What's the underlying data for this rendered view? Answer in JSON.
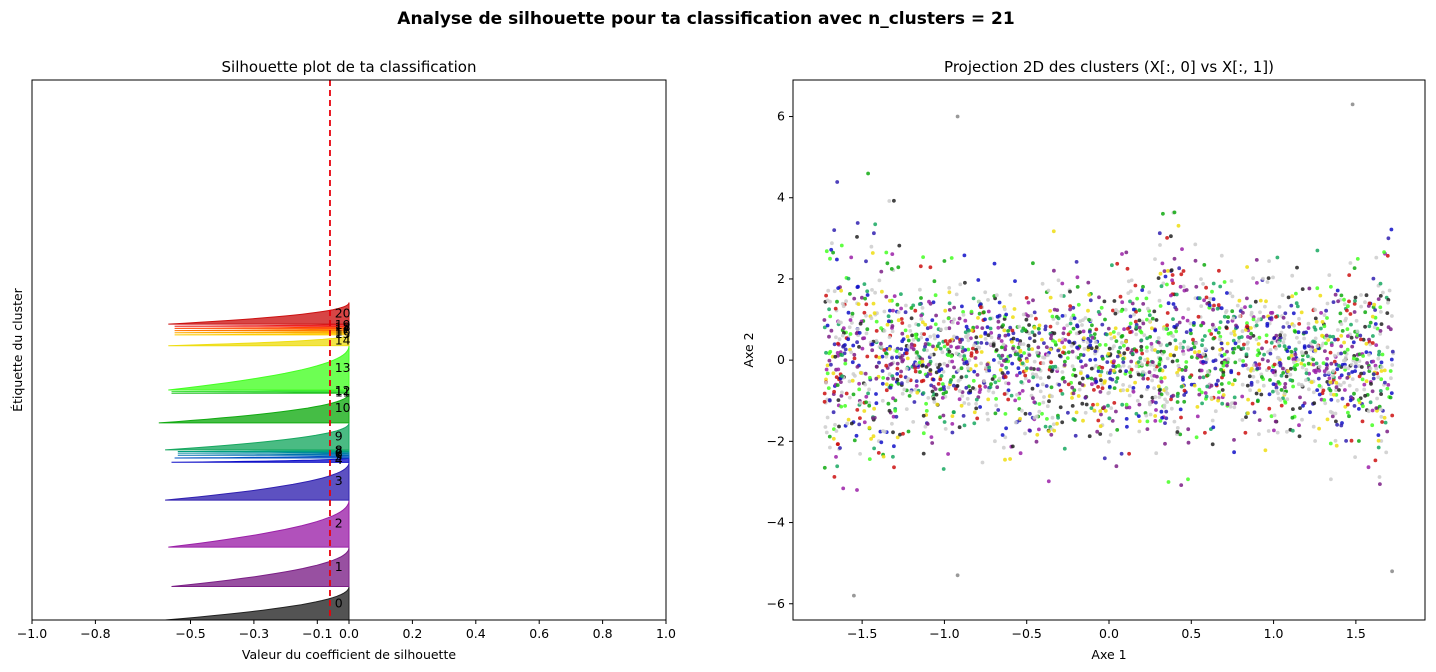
{
  "figure": {
    "suptitle": "Analyse de silhouette pour ta classification avec n_clusters = 21"
  },
  "chart_data": [
    {
      "type": "area",
      "title": "Silhouette plot de ta classification",
      "xlabel": "Valeur du coefficient de silhouette",
      "ylabel": "Étiquette du cluster",
      "xlim": [
        -1.0,
        1.0
      ],
      "xticks": [
        "−1.0",
        "−0.8",
        "−0.5",
        "−0.3",
        "−0.1",
        "0.0",
        "0.2",
        "0.4",
        "0.6",
        "0.8",
        "1.0"
      ],
      "xtick_values": [
        -1.0,
        -0.8,
        -0.5,
        -0.3,
        -0.1,
        0.0,
        0.2,
        0.4,
        0.6,
        0.8,
        1.0
      ],
      "average_silhouette": -0.06,
      "average_line_color": "#e8000b",
      "clusters": [
        {
          "label": "0",
          "color": "#222222",
          "min": -0.58,
          "y0": 0.0,
          "y1": 0.062
        },
        {
          "label": "1",
          "color": "#7b1f86",
          "min": -0.56,
          "y0": 0.062,
          "y1": 0.135
        },
        {
          "label": "2",
          "color": "#9b20a8",
          "min": -0.57,
          "y0": 0.135,
          "y1": 0.222
        },
        {
          "label": "3",
          "color": "#3020b0",
          "min": -0.58,
          "y0": 0.222,
          "y1": 0.292
        },
        {
          "label": "4",
          "color": "#1010c8",
          "min": -0.56,
          "y0": 0.292,
          "y1": 0.3
        },
        {
          "label": "5",
          "color": "#0050c0",
          "min": -0.55,
          "y0": 0.3,
          "y1": 0.305
        },
        {
          "label": "6",
          "color": "#0070b0",
          "min": -0.54,
          "y0": 0.305,
          "y1": 0.309
        },
        {
          "label": "7",
          "color": "#008a9a",
          "min": -0.54,
          "y0": 0.309,
          "y1": 0.312
        },
        {
          "label": "8",
          "color": "#00a080",
          "min": -0.54,
          "y0": 0.312,
          "y1": 0.315
        },
        {
          "label": "9",
          "color": "#17a860",
          "min": -0.58,
          "y0": 0.315,
          "y1": 0.365
        },
        {
          "label": "10",
          "color": "#11aa11",
          "min": -0.6,
          "y0": 0.365,
          "y1": 0.42
        },
        {
          "label": "11",
          "color": "#22c022",
          "min": -0.56,
          "y0": 0.42,
          "y1": 0.423
        },
        {
          "label": "12",
          "color": "#3fe03f",
          "min": -0.56,
          "y0": 0.423,
          "y1": 0.426
        },
        {
          "label": "13",
          "color": "#44ff22",
          "min": -0.57,
          "y0": 0.426,
          "y1": 0.508
        },
        {
          "label": "14",
          "color": "#eedd11",
          "min": -0.57,
          "y0": 0.508,
          "y1": 0.528
        },
        {
          "label": "15",
          "color": "#ffcc00",
          "min": -0.55,
          "y0": 0.528,
          "y1": 0.532
        },
        {
          "label": "16",
          "color": "#ffaa00",
          "min": -0.55,
          "y0": 0.532,
          "y1": 0.536
        },
        {
          "label": "17",
          "color": "#ff7700",
          "min": -0.55,
          "y0": 0.536,
          "y1": 0.54
        },
        {
          "label": "18",
          "color": "#ff4400",
          "min": -0.55,
          "y0": 0.54,
          "y1": 0.544
        },
        {
          "label": "19",
          "color": "#ee2222",
          "min": -0.55,
          "y0": 0.544,
          "y1": 0.548
        },
        {
          "label": "20",
          "color": "#cc1111",
          "min": -0.57,
          "y0": 0.548,
          "y1": 0.588
        }
      ],
      "cluster_label_x": -0.045
    },
    {
      "type": "scatter",
      "title": "Projection 2D des clusters (X[:, 0] vs X[:, 1])",
      "xlabel": "Axe 1",
      "ylabel": "Axe 2",
      "xlim": [
        -1.92,
        1.92
      ],
      "ylim": [
        -6.4,
        6.9
      ],
      "xticks": [
        "−1.5",
        "−1.0",
        "−0.5",
        "0.0",
        "0.5",
        "1.0",
        "1.5"
      ],
      "xtick_values": [
        -1.5,
        -1.0,
        -0.5,
        0.0,
        0.5,
        1.0,
        1.5
      ],
      "yticks": [
        "−6",
        "−4",
        "−2",
        "0",
        "2",
        "4",
        "6"
      ],
      "ytick_values": [
        -6,
        -4,
        -2,
        0,
        2,
        4,
        6
      ],
      "data_range_x": [
        -1.73,
        1.73
      ],
      "palette": [
        "#cccccc",
        "#cccccc",
        "#cccccc",
        "#222222",
        "#7b1f86",
        "#9b20a8",
        "#3020b0",
        "#1010c8",
        "#11aa11",
        "#44ff22",
        "#17a860",
        "#cc1111",
        "#eedd11"
      ],
      "notable_points": [
        {
          "x": -0.92,
          "y": 6.0
        },
        {
          "x": 1.48,
          "y": 6.3
        },
        {
          "x": -1.55,
          "y": -5.8
        },
        {
          "x": -0.92,
          "y": -5.3
        },
        {
          "x": 1.72,
          "y": -5.2
        }
      ]
    }
  ]
}
